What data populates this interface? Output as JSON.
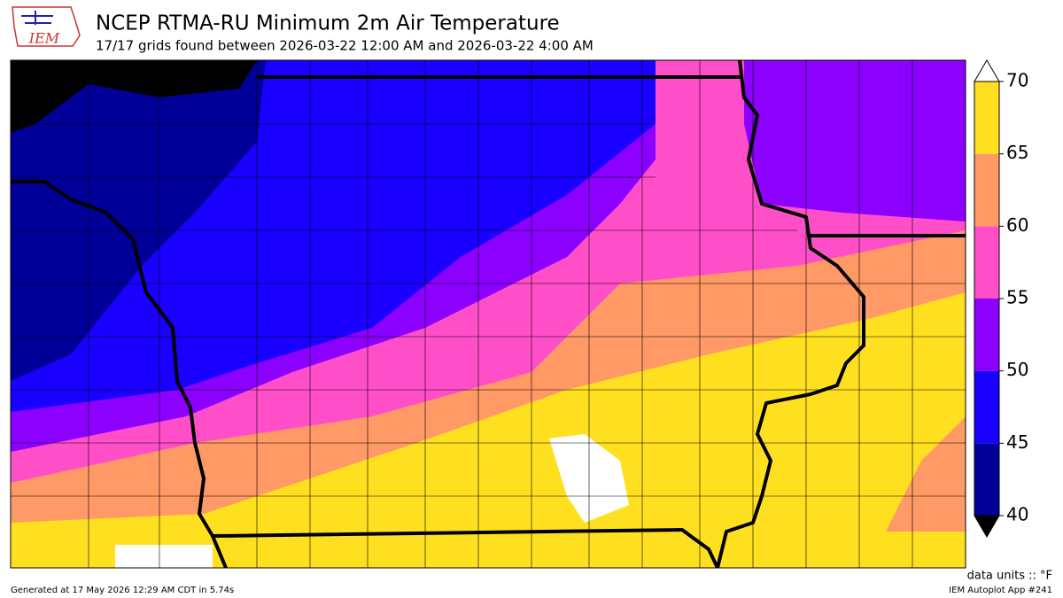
{
  "header": {
    "title": "NCEP RTMA-RU Minimum 2m Air Temperature",
    "subtitle": "17/17 grids found between 2026-03-22 12:00 AM and 2026-03-22 4:00 AM",
    "logo_text": "IEM"
  },
  "colorbar": {
    "ticks": [
      40,
      45,
      50,
      55,
      60,
      65,
      70
    ],
    "colors": [
      "#000099",
      "#1a00ff",
      "#8c00ff",
      "#ff4fc8",
      "#ff9966",
      "#ffe020"
    ],
    "under_color": "#000000",
    "over_color": "#ffffff",
    "units_label": "data units :: °F"
  },
  "footer": {
    "generated": "Generated at 17 May 2026 12:29 AM CDT in 5.74s",
    "app": "IEM Autoplot App #241"
  }
}
